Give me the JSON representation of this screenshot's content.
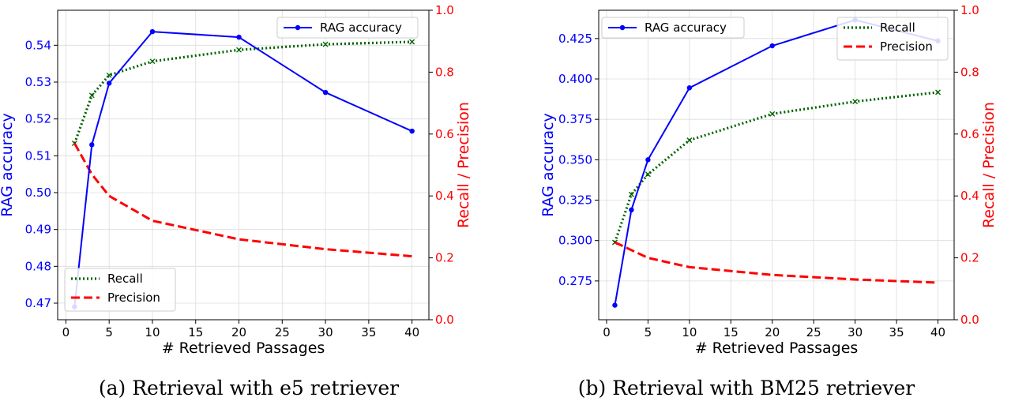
{
  "chart_data": [
    {
      "type": "line",
      "caption": "(a) Retrieval with e5 retriever",
      "xlabel": "# Retrieved Passages",
      "ylabel_left": "RAG accuracy",
      "ylabel_right": "Recall / Precision",
      "xlim": [
        -0.95,
        41.95
      ],
      "xticks": [
        0,
        5,
        10,
        15,
        20,
        25,
        30,
        35,
        40
      ],
      "ylim_left": [
        0.4655,
        0.5495
      ],
      "yticks_left": [
        0.47,
        0.48,
        0.49,
        0.5,
        0.51,
        0.52,
        0.53,
        0.54
      ],
      "ytick_decimals_left": 2,
      "ylim_right": [
        0.0,
        1.0
      ],
      "yticks_right": [
        0.0,
        0.2,
        0.4,
        0.6,
        0.8,
        1.0
      ],
      "grid": true,
      "x": [
        1,
        3,
        5,
        10,
        20,
        30,
        40
      ],
      "series": [
        {
          "name": "RAG accuracy",
          "axis": "left",
          "color": "#0000ff",
          "style": "solid-dot",
          "values": [
            0.469,
            0.513,
            0.5297,
            0.5437,
            0.5422,
            0.5272,
            0.5167
          ]
        },
        {
          "name": "Recall",
          "axis": "right",
          "color": "#006400",
          "style": "dotted-x",
          "values": [
            0.57,
            0.725,
            0.79,
            0.835,
            0.872,
            0.89,
            0.898
          ]
        },
        {
          "name": "Precision",
          "axis": "right",
          "color": "#ff0000",
          "style": "dashed",
          "values": [
            0.57,
            0.47,
            0.4,
            0.32,
            0.26,
            0.228,
            0.205
          ]
        }
      ],
      "legends": [
        {
          "placement": "upper-right",
          "entries": [
            "RAG accuracy"
          ]
        },
        {
          "placement": "lower-left",
          "entries": [
            "Recall",
            "Precision"
          ]
        }
      ]
    },
    {
      "type": "line",
      "caption": "(b) Retrieval with BM25 retriever",
      "xlabel": "# Retrieved Passages",
      "ylabel_left": "RAG accuracy",
      "ylabel_right": "Recall / Precision",
      "xlim": [
        -0.95,
        41.95
      ],
      "xticks": [
        0,
        5,
        10,
        15,
        20,
        25,
        30,
        35,
        40
      ],
      "ylim_left": [
        0.251,
        0.4425
      ],
      "yticks_left": [
        0.275,
        0.3,
        0.325,
        0.35,
        0.375,
        0.4,
        0.425
      ],
      "ytick_decimals_left": 3,
      "ylim_right": [
        0.0,
        1.0
      ],
      "yticks_right": [
        0.0,
        0.2,
        0.4,
        0.6,
        0.8,
        1.0
      ],
      "grid": true,
      "x": [
        1,
        3,
        5,
        10,
        20,
        30,
        40
      ],
      "series": [
        {
          "name": "RAG accuracy",
          "axis": "left",
          "color": "#0000ff",
          "style": "solid-dot",
          "values": [
            0.26,
            0.319,
            0.35,
            0.3945,
            0.4205,
            0.4365,
            0.4235
          ]
        },
        {
          "name": "Recall",
          "axis": "right",
          "color": "#006400",
          "style": "dotted-x",
          "values": [
            0.25,
            0.405,
            0.47,
            0.58,
            0.665,
            0.705,
            0.735
          ]
        },
        {
          "name": "Precision",
          "axis": "right",
          "color": "#ff0000",
          "style": "dashed",
          "values": [
            0.25,
            0.225,
            0.2,
            0.17,
            0.145,
            0.13,
            0.12
          ]
        }
      ],
      "legends": [
        {
          "placement": "upper-left",
          "entries": [
            "RAG accuracy"
          ]
        },
        {
          "placement": "upper-right",
          "entries": [
            "Recall",
            "Precision"
          ]
        }
      ]
    }
  ]
}
